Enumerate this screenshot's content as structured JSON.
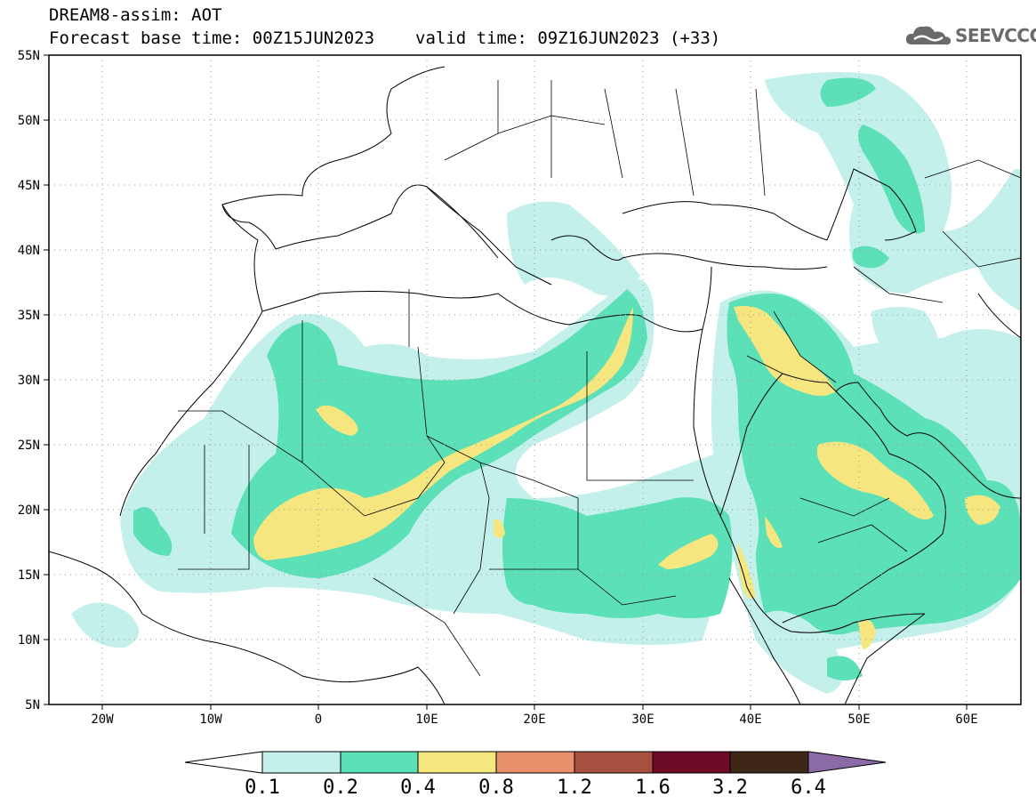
{
  "header": {
    "title": "DREAM8-assim: AOT",
    "base_time": "Forecast base time: 00Z15JUN2023",
    "valid_time": "valid time: 09Z16JUN2023 (+33)",
    "logo_text": "SEEVCCC",
    "logo_icon": "cloud-icon"
  },
  "axes": {
    "lat_labels": [
      "55N",
      "50N",
      "45N",
      "40N",
      "35N",
      "30N",
      "25N",
      "20N",
      "15N",
      "10N",
      "5N"
    ],
    "lon_labels": [
      "20W",
      "10W",
      "0",
      "10E",
      "20E",
      "30E",
      "40E",
      "50E",
      "60E"
    ]
  },
  "colorbar": {
    "labels": [
      "0.1",
      "0.2",
      "0.4",
      "0.8",
      "1.2",
      "1.6",
      "3.2",
      "6.4"
    ],
    "colors": [
      "#ffffff",
      "#c3f0ea",
      "#5ce0b8",
      "#f5e67f",
      "#e8906b",
      "#a85040",
      "#6e0a26",
      "#3e2717",
      "#8c6aa8"
    ]
  },
  "field_colors": {
    "level_0_1": "#c3f0ea",
    "level_0_2": "#5ce0b8",
    "level_0_4": "#f5e67f"
  }
}
